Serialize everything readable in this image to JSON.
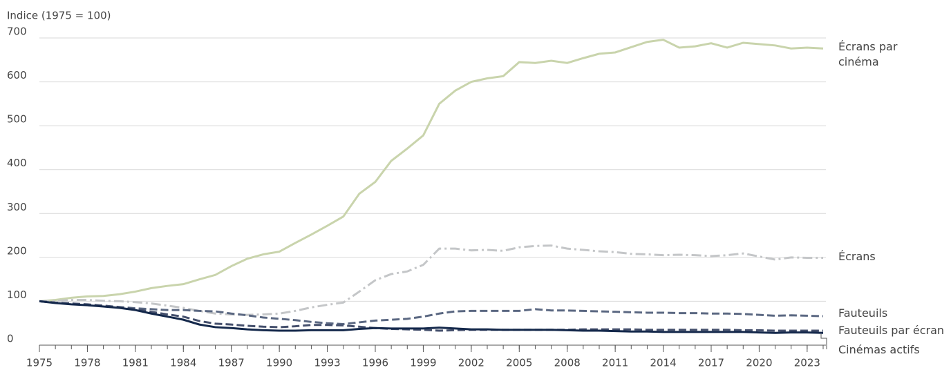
{
  "chart_data": {
    "type": "line",
    "y_label": "Indice (1975 = 100)",
    "x": [
      1975,
      1976,
      1977,
      1978,
      1979,
      1980,
      1981,
      1982,
      1983,
      1984,
      1985,
      1986,
      1987,
      1988,
      1989,
      1990,
      1991,
      1992,
      1993,
      1994,
      1995,
      1996,
      1997,
      1998,
      1999,
      2000,
      2001,
      2002,
      2003,
      2004,
      2005,
      2006,
      2007,
      2008,
      2009,
      2010,
      2011,
      2012,
      2013,
      2014,
      2015,
      2016,
      2017,
      2018,
      2019,
      2020,
      2021,
      2022,
      2023,
      2024
    ],
    "xlim": [
      1975,
      2024
    ],
    "xticks": [
      1975,
      1978,
      1981,
      1984,
      1987,
      1990,
      1993,
      1996,
      1999,
      2002,
      2005,
      2008,
      2011,
      2014,
      2017,
      2020,
      2023
    ],
    "ylim": [
      0,
      700
    ],
    "yticks": [
      0,
      100,
      200,
      300,
      400,
      500,
      600,
      700
    ],
    "grid": true,
    "series": [
      {
        "name": "Écrans par cinéma",
        "color": "#c9d4ac",
        "dash": "solid",
        "values": [
          100,
          103,
          108,
          111,
          112,
          116,
          122,
          130,
          135,
          139,
          150,
          160,
          180,
          197,
          207,
          213,
          233,
          252,
          272,
          293,
          345,
          372,
          420,
          448,
          478,
          550,
          580,
          600,
          608,
          613,
          645,
          643,
          648,
          643,
          654,
          664,
          667,
          679,
          691,
          696,
          678,
          681,
          688,
          678,
          689,
          686,
          683,
          676,
          678,
          676
        ]
      },
      {
        "name": "Écrans",
        "color": "#c4c6c8",
        "dash": "dashdot",
        "values": [
          100,
          101,
          103,
          103,
          101,
          100,
          98,
          95,
          90,
          85,
          78,
          72,
          70,
          69,
          70,
          72,
          78,
          86,
          92,
          97,
          122,
          148,
          162,
          168,
          183,
          220,
          220,
          216,
          217,
          215,
          223,
          226,
          227,
          220,
          217,
          214,
          212,
          208,
          207,
          205,
          206,
          205,
          203,
          205,
          209,
          202,
          195,
          200,
          199,
          199
        ]
      },
      {
        "name": "Fauteuils",
        "color": "#5b6882",
        "dash": "dashed",
        "values": [
          100,
          97,
          95,
          92,
          90,
          87,
          84,
          82,
          80,
          80,
          78,
          77,
          72,
          68,
          63,
          60,
          57,
          53,
          50,
          48,
          52,
          56,
          58,
          60,
          65,
          72,
          77,
          78,
          78,
          78,
          78,
          82,
          79,
          79,
          78,
          77,
          76,
          75,
          74,
          74,
          73,
          73,
          72,
          72,
          71,
          69,
          67,
          68,
          67,
          66
        ]
      },
      {
        "name": "Fauteuils par écran",
        "color": "#444f6c",
        "dash": "dashed",
        "values": [
          100,
          97,
          95,
          93,
          90,
          86,
          82,
          76,
          70,
          65,
          55,
          49,
          47,
          44,
          42,
          41,
          43,
          46,
          46,
          45,
          42,
          39,
          37,
          36,
          35,
          33,
          34,
          35,
          35,
          35,
          35,
          35,
          35,
          35,
          36,
          36,
          36,
          36,
          35,
          35,
          35,
          35,
          35,
          35,
          34,
          34,
          33,
          33,
          33,
          33
        ]
      },
      {
        "name": "Cinémas actifs",
        "color": "#14284b",
        "dash": "solid",
        "values": [
          100,
          96,
          93,
          91,
          88,
          85,
          80,
          72,
          65,
          58,
          47,
          41,
          39,
          36,
          34,
          33,
          33,
          34,
          34,
          34,
          37,
          39,
          38,
          38,
          38,
          40,
          38,
          36,
          36,
          35,
          35,
          35,
          35,
          34,
          33,
          33,
          32,
          31,
          31,
          30,
          30,
          30,
          30,
          30,
          30,
          29,
          28,
          29,
          29,
          28
        ]
      }
    ]
  }
}
